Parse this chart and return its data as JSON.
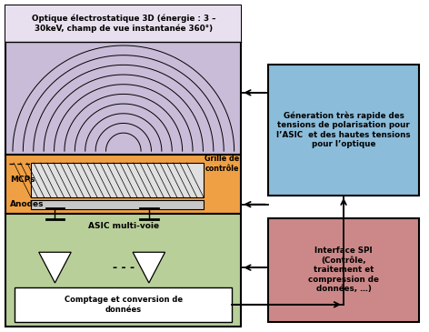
{
  "bg_color": "#ffffff",
  "optics_label": "Optique électrostatique 3D (énergie : 3 –\n30keV, champ de vue instantanée 360°)",
  "optics_bg": "#c8bcd8",
  "optics_text_bg": "#e8e0ee",
  "mcp_section_bg": "#f0a044",
  "grille_label": "Grille de\ncontrôle",
  "mcps_label": "MCPs",
  "anodes_label": "Anodes",
  "asic_section_bg": "#b8cf9a",
  "asic_label": "ASIC multi-voie",
  "dots_label": "- - -",
  "comptage_label": "Comptage et conversion de\ndonnées",
  "right_top_bg": "#8bbcda",
  "right_top_label": "Géneration très rapide des\ntensions de polarisation pour\nl’ASIC  et des hautes tensions\npour l’optique",
  "right_bot_bg": "#cc8888",
  "right_bot_label": "Interface SPI\n(Contrôle,\ntraitement et\ncompression de\ndonnées, …)",
  "arrow_color": "#000000",
  "text_color": "#000000"
}
